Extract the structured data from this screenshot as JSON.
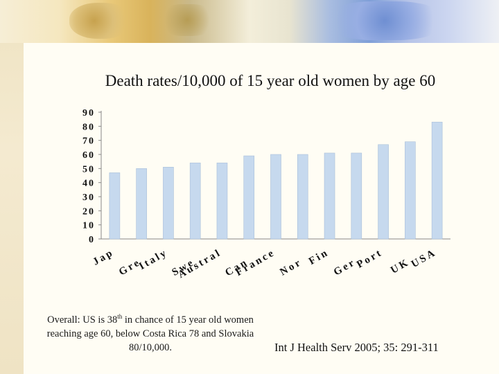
{
  "title": "Death rates/10,000 of 15 year old women by age 60",
  "note": {
    "part1": "Overall: US is 38",
    "sup": "th",
    "part2": " in chance of 15 year old women reaching age 60, below Costa Rica 78 and Slovakia 80/10,000."
  },
  "citation": "Int J Health Serv 2005; 35: 291-311",
  "colors": {
    "bar": "#c6d9ee",
    "bar_edge": "#a9bfd9",
    "axis": "#888888",
    "text": "#111111"
  },
  "chart_data": {
    "type": "bar",
    "title": "Death rates/10,000 of 15 year old women by age 60",
    "categories": [
      "Jap",
      "Gre",
      "Italy",
      "Swe",
      "Austral",
      "Can",
      "France",
      "Nor",
      "Fin",
      "Ger",
      "Port",
      "UK",
      "USA"
    ],
    "values": [
      47,
      50,
      51,
      54,
      54,
      59,
      60,
      60,
      61,
      61,
      67,
      69,
      83
    ],
    "y_ticks": [
      0,
      10,
      20,
      30,
      40,
      50,
      60,
      70,
      80,
      90
    ],
    "ylim": [
      0,
      90
    ],
    "grid": false,
    "legend": "none"
  }
}
